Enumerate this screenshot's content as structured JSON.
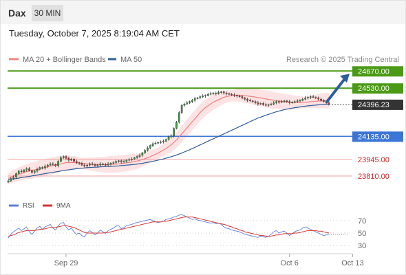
{
  "header": {
    "instrument": "Dax",
    "timeframe": "30 MIN",
    "datetime": "Tuesday, October 7, 2025 8:19:04 AM CET"
  },
  "legend": {
    "ma20": "MA 20 + Bollinger Bands",
    "ma50": "MA 50",
    "source": "Research © 2025 Trading Central",
    "rsi": "RSI",
    "rsi_ma": "9MA"
  },
  "colors": {
    "ma20": "#f08080",
    "bollinger_fill": "#fde3e3",
    "ma50": "#2f5c98",
    "resistance": "#4a9a16",
    "support": "#3b75d6",
    "target_line": "#f5a0a0",
    "last_price_bg": "#333333",
    "arrow": "#2c5f9c",
    "candle_up": "#3e9a3e",
    "candle_down": "#c83a3a",
    "rsi": "#5b7fd6",
    "rsi_ma": "#d93030"
  },
  "chart_data": [
    {
      "type": "candlestick",
      "y_range": [
        23720,
        24700
      ],
      "price_levels": [
        {
          "role": "resistance",
          "value": 24670.0,
          "label": "24670.00"
        },
        {
          "role": "resistance",
          "value": 24530.0,
          "label": "24530.00"
        },
        {
          "role": "last",
          "value": 24396.23,
          "label": "24396.23"
        },
        {
          "role": "support",
          "value": 24135.0,
          "label": "24135.00"
        },
        {
          "role": "support-target",
          "value": 23945.0,
          "label": "23945.00"
        },
        {
          "role": "support-target",
          "value": 23810.0,
          "label": "23810.00"
        }
      ],
      "x_ticks": [
        {
          "label": "Sep 29",
          "index": 22
        },
        {
          "label": "Oct 6",
          "index": 107
        },
        {
          "label": "Oct 13",
          "index": 131
        }
      ],
      "close": [
        23770,
        23790,
        23800,
        23830,
        23850,
        23845,
        23860,
        23870,
        23855,
        23840,
        23850,
        23865,
        23880,
        23875,
        23890,
        23900,
        23910,
        23905,
        23895,
        23930,
        23960,
        23970,
        23955,
        23940,
        23950,
        23930,
        23920,
        23915,
        23900,
        23890,
        23900,
        23910,
        23905,
        23895,
        23900,
        23910,
        23905,
        23900,
        23910,
        23915,
        23920,
        23930,
        23935,
        23925,
        23930,
        23940,
        23945,
        23950,
        23960,
        23970,
        23980,
        24000,
        24020,
        24040,
        24060,
        24075,
        24080,
        24085,
        24090,
        24095,
        24110,
        24130,
        24140,
        24200,
        24250,
        24330,
        24390,
        24400,
        24410,
        24420,
        24430,
        24445,
        24450,
        24460,
        24465,
        24470,
        24480,
        24485,
        24490,
        24485,
        24495,
        24500,
        24490,
        24485,
        24480,
        24475,
        24470,
        24465,
        24460,
        24450,
        24440,
        24430,
        24425,
        24420,
        24410,
        24400,
        24405,
        24395,
        24390,
        24395,
        24400,
        24410,
        24420,
        24415,
        24420,
        24425,
        24420,
        24410,
        24415,
        24420,
        24425,
        24430,
        24440,
        24450,
        24455,
        24460,
        24455,
        24450,
        24440,
        24430,
        24420,
        24410,
        24400
      ],
      "ma20": [
        23790,
        23800,
        23810,
        23815,
        23825,
        23830,
        23840,
        23845,
        23850,
        23855,
        23860,
        23865,
        23870,
        23875,
        23880,
        23885,
        23890,
        23895,
        23900,
        23905,
        23910,
        23915,
        23920,
        23920,
        23920,
        23920,
        23918,
        23916,
        23914,
        23912,
        23910,
        23908,
        23906,
        23905,
        23904,
        23903,
        23903,
        23903,
        23904,
        23905,
        23906,
        23908,
        23910,
        23912,
        23915,
        23918,
        23921,
        23924,
        23928,
        23933,
        23938,
        23945,
        23952,
        23960,
        23968,
        23978,
        23988,
        23998,
        24010,
        24022,
        24035,
        24050,
        24065,
        24085,
        24105,
        24130,
        24155,
        24180,
        24205,
        24230,
        24255,
        24280,
        24305,
        24330,
        24350,
        24370,
        24385,
        24400,
        24415,
        24425,
        24435,
        24445,
        24455,
        24460,
        24465,
        24468,
        24470,
        24472,
        24472,
        24470,
        24468,
        24466,
        24463,
        24460,
        24457,
        24453,
        24450,
        24446,
        24442,
        24438,
        24434,
        24430,
        24427,
        24424,
        24421,
        24419,
        24417,
        24415,
        24414,
        24413,
        24412,
        24412,
        24413,
        24414,
        24416,
        24418,
        24420,
        24422,
        24424,
        24426,
        24427,
        24427,
        24426
      ],
      "ma50": [
        23780,
        23783,
        23786,
        23790,
        23793,
        23797,
        23800,
        23804,
        23807,
        23811,
        23815,
        23818,
        23822,
        23826,
        23830,
        23833,
        23837,
        23840,
        23844,
        23847,
        23851,
        23854,
        23858,
        23861,
        23864,
        23867,
        23870,
        23872,
        23874,
        23876,
        23878,
        23880,
        23881,
        23882,
        23883,
        23885,
        23886,
        23887,
        23888,
        23889,
        23890,
        23892,
        23893,
        23895,
        23897,
        23899,
        23901,
        23903,
        23905,
        23908,
        23911,
        23914,
        23918,
        23922,
        23926,
        23930,
        23935,
        23940,
        23945,
        23950,
        23956,
        23962,
        23968,
        23975,
        23982,
        23990,
        23998,
        24007,
        24016,
        24025,
        24035,
        24045,
        24055,
        24065,
        24075,
        24085,
        24095,
        24105,
        24115,
        24125,
        24135,
        24145,
        24155,
        24165,
        24175,
        24185,
        24195,
        24205,
        24215,
        24225,
        24235,
        24245,
        24255,
        24265,
        24275,
        24285,
        24292,
        24300,
        24308,
        24315,
        24322,
        24330,
        24336,
        24342,
        24348,
        24353,
        24358,
        24362,
        24366,
        24370,
        24373,
        24376,
        24379,
        24382,
        24385,
        24387,
        24389,
        24391,
        24393,
        24395,
        24396,
        24397,
        24398
      ]
    },
    {
      "type": "line",
      "title": "RSI",
      "y_range": [
        20,
        80
      ],
      "y_ticks": [
        70,
        50,
        30
      ],
      "series": [
        {
          "name": "RSI",
          "values": [
            42,
            48,
            52,
            55,
            58,
            54,
            57,
            60,
            52,
            48,
            53,
            58,
            61,
            56,
            60,
            62,
            64,
            58,
            55,
            62,
            66,
            67,
            60,
            55,
            58,
            52,
            48,
            50,
            46,
            44,
            50,
            54,
            51,
            47,
            50,
            55,
            52,
            49,
            54,
            56,
            58,
            61,
            62,
            57,
            59,
            62,
            63,
            64,
            66,
            67,
            68,
            69,
            70,
            71,
            72,
            70,
            68,
            67,
            68,
            69,
            72,
            73,
            74,
            76,
            77,
            79,
            80,
            78,
            76,
            74,
            72,
            73,
            71,
            70,
            69,
            68,
            67,
            66,
            67,
            65,
            66,
            64,
            60,
            58,
            57,
            55,
            54,
            53,
            52,
            50,
            48,
            47,
            46,
            45,
            44,
            43,
            45,
            44,
            43,
            45,
            48,
            52,
            54,
            50,
            52,
            53,
            50,
            46,
            49,
            52,
            54,
            55,
            58,
            60,
            58,
            56,
            54,
            52,
            50,
            48,
            46,
            47,
            48
          ]
        },
        {
          "name": "9MA",
          "values": [
            45,
            46,
            47,
            49,
            51,
            52,
            53,
            54,
            54,
            54,
            54,
            55,
            56,
            56,
            57,
            58,
            59,
            59,
            59,
            60,
            61,
            62,
            62,
            61,
            60,
            59,
            57,
            55,
            53,
            51,
            50,
            50,
            50,
            50,
            50,
            50,
            50,
            51,
            51,
            52,
            53,
            54,
            55,
            56,
            57,
            58,
            59,
            60,
            61,
            62,
            63,
            64,
            65,
            66,
            67,
            68,
            68,
            68,
            68,
            69,
            69,
            70,
            71,
            72,
            73,
            74,
            75,
            76,
            76,
            76,
            76,
            75,
            74,
            73,
            72,
            71,
            70,
            69,
            68,
            67,
            66,
            65,
            64,
            63,
            61,
            60,
            58,
            57,
            55,
            54,
            52,
            51,
            50,
            49,
            48,
            47,
            46,
            46,
            45,
            45,
            45,
            46,
            47,
            47,
            48,
            49,
            49,
            49,
            49,
            50,
            50,
            51,
            52,
            53,
            54,
            54,
            54,
            54,
            53,
            53,
            52,
            51,
            50
          ]
        }
      ]
    }
  ]
}
